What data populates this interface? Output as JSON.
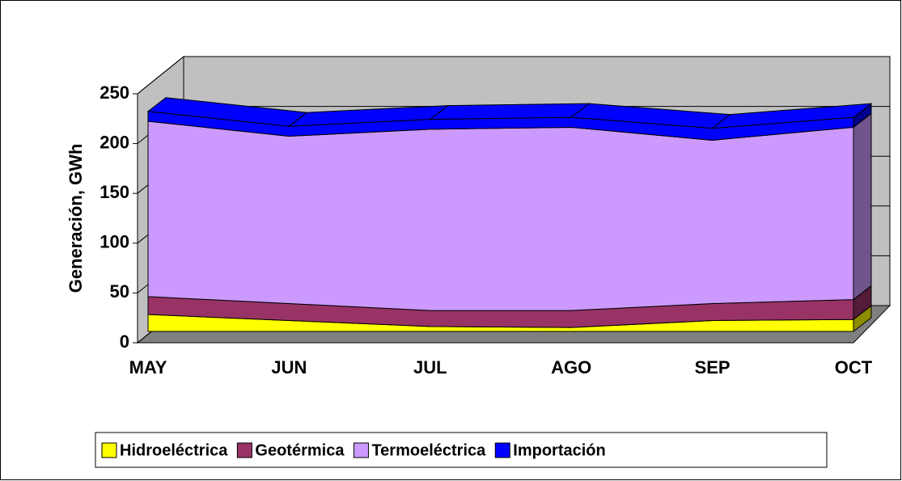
{
  "chart_data": {
    "type": "area3d",
    "y_label": "Generación, GWh",
    "categories": [
      "MAY",
      "JUN",
      "JUL",
      "AGO",
      "SEP",
      "OCT"
    ],
    "series": [
      {
        "name": "Hidroeléctrica",
        "color": "#ffff00",
        "values": [
          17,
          11,
          5,
          4,
          11,
          12
        ]
      },
      {
        "name": "Geotérmica",
        "color": "#993366",
        "values": [
          18,
          17,
          16,
          17,
          17,
          20
        ]
      },
      {
        "name": "Termoeléctrica",
        "color": "#cc99ff",
        "values": [
          176,
          168,
          182,
          184,
          164,
          173
        ]
      },
      {
        "name": "Importación",
        "color": "#0000ff",
        "values": [
          10,
          10,
          10,
          10,
          12,
          10
        ]
      }
    ],
    "ylim": [
      0,
      250
    ],
    "yticks": [
      0,
      50,
      100,
      150,
      200,
      250
    ],
    "grid": true
  }
}
